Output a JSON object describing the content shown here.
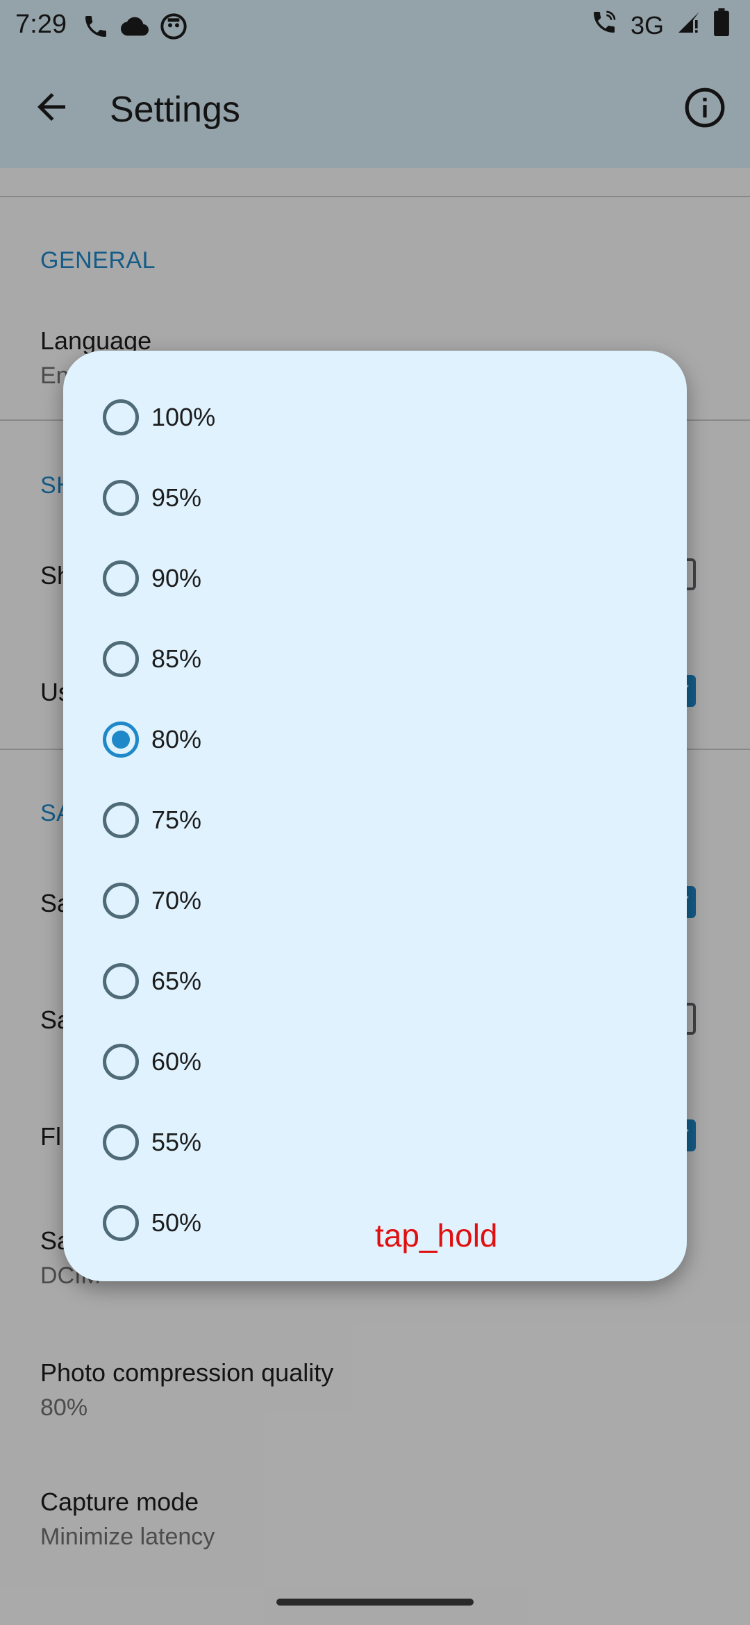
{
  "status_bar": {
    "time": "7:29",
    "network": "3G",
    "icons": [
      "phone-icon",
      "cloud-icon",
      "robot-icon",
      "wifi-call-icon",
      "signal-icon",
      "battery-icon"
    ]
  },
  "app_bar": {
    "title": "Settings",
    "icons": [
      "back-arrow-icon",
      "info-icon"
    ]
  },
  "settings": {
    "general_header": "GENERAL",
    "language_title": "Language",
    "language_summary": "En",
    "section2_header": "SH",
    "row_sh_title": "Sh",
    "row_us_title": "Us",
    "section3_header": "SA",
    "row_sa1_title": "Sa",
    "row_sa2_title": "Sa",
    "row_fl_title": "Fl",
    "row_sa3_title": "Sa",
    "row_sa3_summary": "DCIM",
    "photo_title": "Photo compression quality",
    "photo_summary": "80%",
    "capture_title": "Capture mode",
    "capture_summary": "Minimize latency"
  },
  "dialog": {
    "options": [
      "100%",
      "95%",
      "90%",
      "85%",
      "80%",
      "75%",
      "70%",
      "65%",
      "60%",
      "55%",
      "50%"
    ],
    "selected": "80%"
  },
  "overlay": {
    "action_label": "tap_hold"
  },
  "colors": {
    "accent": "#1e88c8",
    "dialog_bg": "#e0f2fd",
    "appbar_bg": "#dbeff9",
    "overlay_text": "#e01010"
  }
}
